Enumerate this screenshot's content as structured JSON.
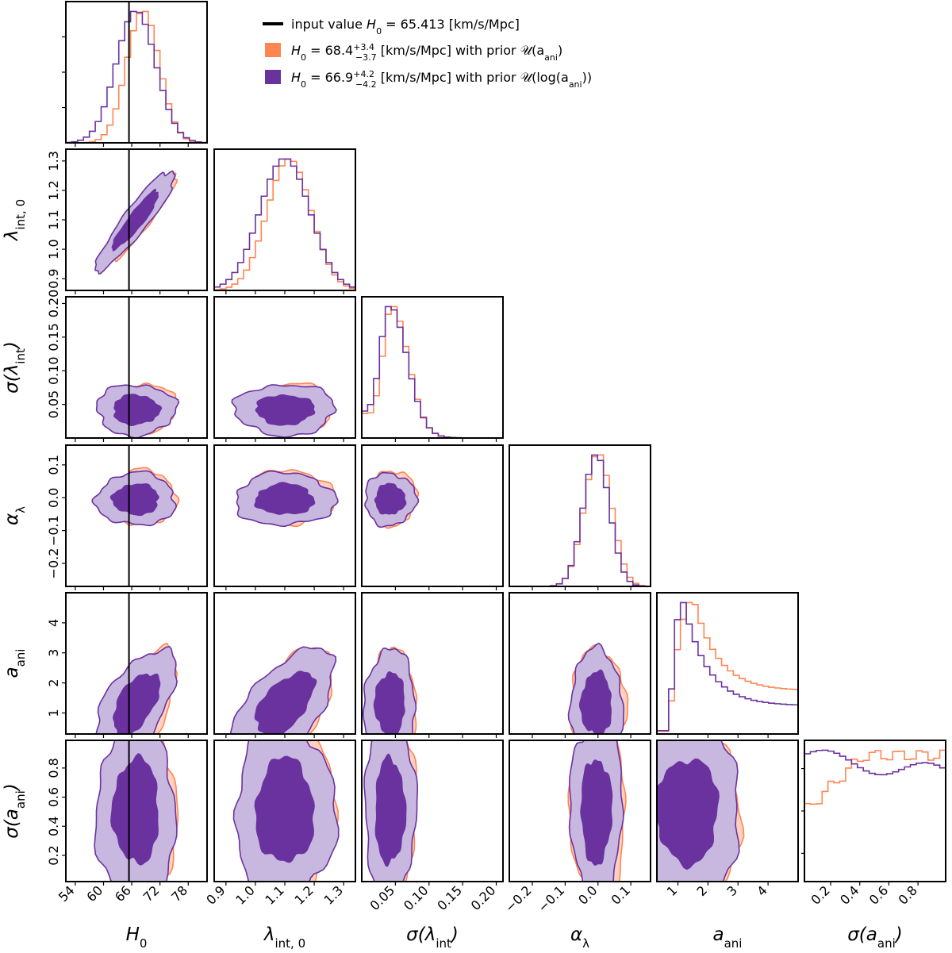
{
  "chart_data": {
    "type": "corner",
    "parameters": [
      {
        "key": "H0",
        "label": "H",
        "label_sub": "0",
        "range": [
          52,
          82
        ],
        "ticks": [
          54,
          60,
          66,
          72,
          78
        ],
        "tick_labels": [
          "54",
          "60",
          "66",
          "72",
          "78"
        ]
      },
      {
        "key": "lambda_int_0",
        "label": "λ",
        "label_sub": "int, 0",
        "range": [
          0.86,
          1.34
        ],
        "ticks": [
          0.9,
          1.0,
          1.1,
          1.2,
          1.3
        ],
        "tick_labels": [
          "0.9",
          "1.0",
          "1.1",
          "1.2",
          "1.3"
        ]
      },
      {
        "key": "sigma_lambda_int",
        "label": "σ(λ",
        "label_sub": "int",
        "label_tail": ")",
        "range": [
          0.0,
          0.21
        ],
        "ticks": [
          0.05,
          0.1,
          0.15,
          0.2
        ],
        "tick_labels": [
          "0.05",
          "0.10",
          "0.15",
          "0.20"
        ]
      },
      {
        "key": "alpha_lambda",
        "label": "α",
        "label_sub": "λ",
        "range": [
          -0.27,
          0.16
        ],
        "ticks": [
          -0.2,
          -0.1,
          0.0,
          0.1
        ],
        "tick_labels": [
          "−0.2",
          "−0.1",
          "0.0",
          "0.1"
        ]
      },
      {
        "key": "a_ani",
        "label": "a",
        "label_sub": "ani",
        "range": [
          0.3,
          5.0
        ],
        "ticks": [
          1,
          2,
          3,
          4
        ],
        "tick_labels": [
          "1",
          "2",
          "3",
          "4"
        ]
      },
      {
        "key": "sigma_a_ani",
        "label": "σ(a",
        "label_sub": "ani",
        "label_tail": ")",
        "range": [
          0.02,
          0.99
        ],
        "ticks": [
          0.2,
          0.4,
          0.6,
          0.8
        ],
        "tick_labels": [
          "0.2",
          "0.4",
          "0.6",
          "0.8"
        ]
      }
    ],
    "truth": {
      "param": "H0",
      "value": 65.413,
      "color": "#000000"
    },
    "legend": {
      "placement": "top-right",
      "entries": [
        {
          "color": "#000000",
          "kind": "line",
          "prefix": "input value ",
          "math": "H",
          "math_sub": "0",
          "text": " =  65.413 [km/s/Mpc]"
        },
        {
          "color": "#ff8552",
          "kind": "patch",
          "math": "H",
          "math_sub": "0",
          "text": " = 68.4",
          "sup": "+3.4",
          "sub": "−3.7",
          "tail": " [km/s/Mpc] with prior 𝒰(a",
          "tail_sub": "ani",
          "tail_end": ")"
        },
        {
          "color": "#6a329f",
          "kind": "patch",
          "math": "H",
          "math_sub": "0",
          "text": " = 66.9",
          "sup": "+4.2",
          "sub": "−4.2",
          "tail": " [km/s/Mpc] with prior 𝒰(log(a",
          "tail_sub": "ani",
          "tail_end": "))"
        }
      ]
    },
    "series": [
      {
        "name": "prior U(a_ani)",
        "color": "#ff8552",
        "fill_color": "#ffc9b3",
        "marginals": [
          {
            "mean": 68.4,
            "sd": 3.5,
            "shape": "gauss"
          },
          {
            "mean": 1.115,
            "sd": 0.075,
            "shape": "gauss"
          },
          {
            "mean": 0.045,
            "sd": 0.018,
            "shape": "skew"
          },
          {
            "mean": 0.0,
            "sd": 0.042,
            "shape": "gauss"
          },
          {
            "shape": "decay",
            "peak": 1.5,
            "tail": 1.1
          },
          {
            "shape": "rise",
            "start": 0.52,
            "plateau": 0.88
          }
        ]
      },
      {
        "name": "prior U(log(a_ani))",
        "color": "#6a329f",
        "fill_color": "#c8b8df",
        "dark_fill": "#6a329f",
        "marginals": [
          {
            "mean": 66.9,
            "sd": 4.2,
            "shape": "gauss"
          },
          {
            "mean": 1.1,
            "sd": 0.085,
            "shape": "gauss"
          },
          {
            "mean": 0.042,
            "sd": 0.019,
            "shape": "skew"
          },
          {
            "mean": -0.005,
            "sd": 0.04,
            "shape": "gauss"
          },
          {
            "shape": "decay",
            "peak": 1.1,
            "tail": 0.55
          },
          {
            "shape": "flat",
            "level": 0.78
          }
        ]
      }
    ]
  }
}
